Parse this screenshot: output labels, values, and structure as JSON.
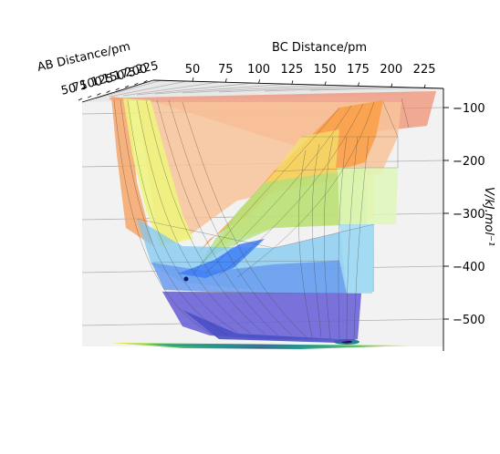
{
  "chart_data": {
    "type": "surface3d",
    "title": "",
    "xlabel": "AB Distance/pm",
    "ylabel": "BC Distance/pm",
    "zlabel": "V/kJ.mol⁻¹",
    "x_ticks": [
      "50",
      "75",
      "100",
      "125",
      "150",
      "175",
      "200",
      "225"
    ],
    "y_ticks": [
      "50",
      "75",
      "100",
      "125",
      "150",
      "175",
      "200",
      "225"
    ],
    "z_ticks": [
      "−100",
      "−200",
      "−300",
      "−400",
      "−500"
    ],
    "z_tick_values": [
      -100,
      -200,
      -300,
      -400,
      -500
    ],
    "zlim": [
      -560,
      -70
    ],
    "contour_levels": [
      -100,
      -200,
      -300,
      -400,
      -500
    ],
    "colormap": "jet",
    "floor_projection": "contour map (viridis) on base plane",
    "marked_point": {
      "AB": 75,
      "BC": 200,
      "V": -430
    },
    "grid": true
  }
}
